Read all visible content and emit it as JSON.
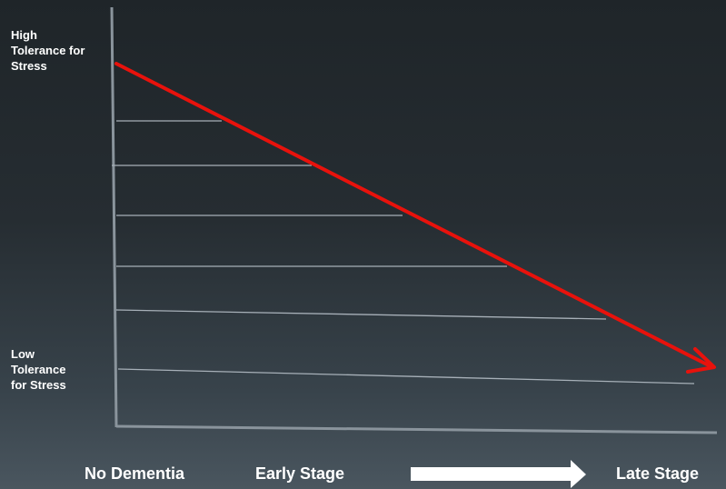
{
  "y_labels": {
    "high": [
      "High",
      "Tolerance for",
      "Stress"
    ],
    "low": [
      "Low",
      "Tolerance",
      "for Stress"
    ]
  },
  "x_labels": {
    "no_dementia": "No Dementia",
    "early_stage": "Early Stage",
    "late_stage": "Late Stage"
  },
  "colors": {
    "background_top": "#1f2529",
    "background_bottom": "#4a565f",
    "axis": "#8a949c",
    "guide_lines": "#a7b0b8",
    "trend_arrow": "#e8120c",
    "text": "#ffffff"
  },
  "icons": {
    "progress_arrow": "right-arrow-icon",
    "trend_arrow": "red-downward-trend-arrow"
  }
}
